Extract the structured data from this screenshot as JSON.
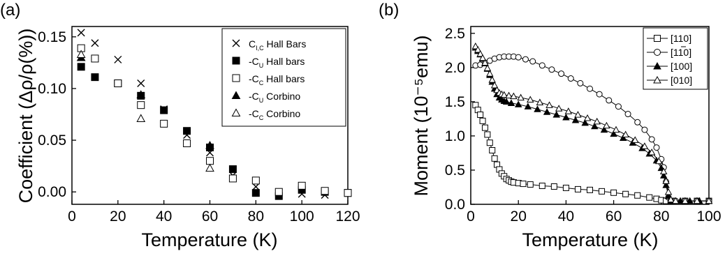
{
  "panels": [
    {
      "label": "(a)"
    },
    {
      "label": "(b)"
    }
  ],
  "chart_data": [
    {
      "type": "scatter",
      "panel": "(a)",
      "xlabel": "Temperature (K)",
      "ylabel": "Coefficient (Δρ/ρ(%))",
      "xlim": [
        0,
        120
      ],
      "ylim": [
        -0.012,
        0.16
      ],
      "xticks": [
        "0",
        "20",
        "40",
        "60",
        "80",
        "100",
        "120"
      ],
      "yticks": [
        "0.00",
        "0.05",
        "0.10",
        "0.15"
      ],
      "legend_position": "top-right",
      "series": [
        {
          "name": "C",
          "sub": "I,C",
          "suffix": " Hall Bars",
          "marker": "x",
          "points": [
            [
              4,
              0.154
            ],
            [
              10,
              0.144
            ],
            [
              20,
              0.128
            ],
            [
              30,
              0.105
            ],
            [
              40,
              0.08
            ],
            [
              50,
              0.055
            ],
            [
              60,
              0.038
            ],
            [
              70,
              0.016
            ],
            [
              80,
              0.005
            ],
            [
              90,
              -0.001
            ],
            [
              100,
              -0.002
            ],
            [
              110,
              -0.003
            ]
          ]
        },
        {
          "name": "-C",
          "sub": "U",
          "suffix": " Hall bars",
          "marker": "square-filled",
          "points": [
            [
              4,
              0.121
            ],
            [
              10,
              0.111
            ],
            [
              20,
              0.105
            ],
            [
              30,
              0.093
            ],
            [
              40,
              0.079
            ],
            [
              50,
              0.059
            ],
            [
              60,
              0.043
            ],
            [
              70,
              0.022
            ],
            [
              80,
              -0.001
            ],
            [
              90,
              -0.004
            ],
            [
              100,
              0.002
            ],
            [
              110,
              0.0
            ],
            [
              120,
              -0.001
            ]
          ]
        },
        {
          "name": "-C",
          "sub": "C",
          "suffix": " Hall bars",
          "marker": "square-open",
          "points": [
            [
              4,
              0.139
            ],
            [
              10,
              0.129
            ],
            [
              20,
              0.105
            ],
            [
              30,
              0.084
            ],
            [
              40,
              0.066
            ],
            [
              50,
              0.047
            ],
            [
              60,
              0.03
            ],
            [
              70,
              0.013
            ],
            [
              80,
              0.011
            ],
            [
              90,
              0.0
            ],
            [
              100,
              0.006
            ],
            [
              110,
              0.001
            ],
            [
              120,
              -0.001
            ]
          ]
        },
        {
          "name": "-C",
          "sub": "U",
          "suffix": " Corbino",
          "marker": "triangle-filled",
          "points": [
            [
              4,
              0.13
            ],
            [
              30,
              0.094
            ],
            [
              60,
              0.045
            ]
          ]
        },
        {
          "name": "-C",
          "sub": "C",
          "suffix": " Corbino",
          "marker": "triangle-open",
          "points": [
            [
              4,
              0.133
            ],
            [
              30,
              0.071
            ],
            [
              60,
              0.023
            ]
          ]
        }
      ]
    },
    {
      "type": "scatter",
      "panel": "(b)",
      "xlabel": "Temperature (K)",
      "ylabel": "Moment (10⁻⁵emu)",
      "xlim": [
        0,
        100
      ],
      "ylim": [
        0,
        2.6
      ],
      "xticks": [
        "0",
        "20",
        "40",
        "60",
        "80",
        "100"
      ],
      "yticks": [
        "0.0",
        "0.5",
        "1.0",
        "1.5",
        "2.0",
        "2.5"
      ],
      "legend_position": "top-right",
      "series": [
        {
          "name": "[110]",
          "bar": false,
          "marker": "square-open",
          "points": [
            [
              2,
              1.45
            ],
            [
              3,
              1.38
            ],
            [
              4,
              1.31
            ],
            [
              5,
              1.22
            ],
            [
              6,
              1.12
            ],
            [
              7,
              1.02
            ],
            [
              8,
              0.9
            ],
            [
              9,
              0.79
            ],
            [
              10,
              0.67
            ],
            [
              11,
              0.58
            ],
            [
              12,
              0.51
            ],
            [
              13,
              0.45
            ],
            [
              14,
              0.41
            ],
            [
              15,
              0.37
            ],
            [
              16,
              0.35
            ],
            [
              17,
              0.33
            ],
            [
              18,
              0.32
            ],
            [
              20,
              0.31
            ],
            [
              22,
              0.3
            ],
            [
              25,
              0.29
            ],
            [
              30,
              0.27
            ],
            [
              35,
              0.26
            ],
            [
              40,
              0.24
            ],
            [
              45,
              0.22
            ],
            [
              50,
              0.21
            ],
            [
              55,
              0.19
            ],
            [
              60,
              0.17
            ],
            [
              65,
              0.15
            ],
            [
              70,
              0.13
            ],
            [
              75,
              0.1
            ],
            [
              78,
              0.08
            ],
            [
              80,
              0.06
            ],
            [
              82,
              0.05
            ],
            [
              85,
              0.05
            ],
            [
              90,
              0.05
            ],
            [
              95,
              0.05
            ],
            [
              100,
              0.05
            ]
          ]
        },
        {
          "name": "[110]",
          "bar": true,
          "marker": "circle-open",
          "points": [
            [
              2,
              2.03
            ],
            [
              4,
              2.04
            ],
            [
              6,
              2.07
            ],
            [
              8,
              2.1
            ],
            [
              10,
              2.13
            ],
            [
              12,
              2.15
            ],
            [
              14,
              2.16
            ],
            [
              16,
              2.16
            ],
            [
              18,
              2.16
            ],
            [
              20,
              2.15
            ],
            [
              23,
              2.12
            ],
            [
              26,
              2.09
            ],
            [
              30,
              2.03
            ],
            [
              34,
              1.97
            ],
            [
              38,
              1.91
            ],
            [
              42,
              1.84
            ],
            [
              46,
              1.77
            ],
            [
              50,
              1.69
            ],
            [
              54,
              1.61
            ],
            [
              58,
              1.52
            ],
            [
              62,
              1.43
            ],
            [
              66,
              1.32
            ],
            [
              70,
              1.2
            ],
            [
              73,
              1.09
            ],
            [
              76,
              0.95
            ],
            [
              78,
              0.83
            ],
            [
              80,
              0.66
            ],
            [
              81,
              0.54
            ],
            [
              82,
              0.33
            ],
            [
              83,
              0.1
            ],
            [
              84,
              0.05
            ],
            [
              86,
              0.05
            ],
            [
              90,
              0.05
            ],
            [
              95,
              0.05
            ],
            [
              100,
              0.05
            ]
          ]
        },
        {
          "name": "[100]",
          "bar": false,
          "marker": "triangle-filled",
          "points": [
            [
              2,
              2.29
            ],
            [
              3,
              2.24
            ],
            [
              4,
              2.19
            ],
            [
              5,
              2.13
            ],
            [
              6,
              2.06
            ],
            [
              7,
              1.98
            ],
            [
              8,
              1.89
            ],
            [
              9,
              1.79
            ],
            [
              10,
              1.69
            ],
            [
              11,
              1.61
            ],
            [
              12,
              1.56
            ],
            [
              13,
              1.53
            ],
            [
              14,
              1.51
            ],
            [
              15,
              1.5
            ],
            [
              17,
              1.48
            ],
            [
              20,
              1.46
            ],
            [
              24,
              1.43
            ],
            [
              28,
              1.39
            ],
            [
              32,
              1.35
            ],
            [
              36,
              1.31
            ],
            [
              40,
              1.27
            ],
            [
              44,
              1.23
            ],
            [
              48,
              1.19
            ],
            [
              52,
              1.14
            ],
            [
              56,
              1.09
            ],
            [
              60,
              1.03
            ],
            [
              64,
              0.97
            ],
            [
              68,
              0.9
            ],
            [
              72,
              0.82
            ],
            [
              75,
              0.74
            ],
            [
              78,
              0.64
            ],
            [
              80,
              0.53
            ],
            [
              81,
              0.42
            ],
            [
              82,
              0.28
            ],
            [
              83,
              0.12
            ],
            [
              84,
              0.05
            ],
            [
              88,
              0.05
            ],
            [
              92,
              0.05
            ],
            [
              96,
              0.05
            ],
            [
              100,
              0.05
            ]
          ]
        },
        {
          "name": "[010]",
          "bar": false,
          "marker": "triangle-open",
          "points": [
            [
              2,
              2.31
            ],
            [
              3,
              2.26
            ],
            [
              4,
              2.2
            ],
            [
              5,
              2.14
            ],
            [
              6,
              2.07
            ],
            [
              7,
              1.99
            ],
            [
              8,
              1.91
            ],
            [
              9,
              1.82
            ],
            [
              10,
              1.74
            ],
            [
              11,
              1.67
            ],
            [
              12,
              1.63
            ],
            [
              13,
              1.61
            ],
            [
              14,
              1.6
            ],
            [
              16,
              1.59
            ],
            [
              18,
              1.58
            ],
            [
              21,
              1.56
            ],
            [
              25,
              1.53
            ],
            [
              29,
              1.49
            ],
            [
              33,
              1.45
            ],
            [
              37,
              1.4
            ],
            [
              41,
              1.36
            ],
            [
              45,
              1.31
            ],
            [
              49,
              1.26
            ],
            [
              53,
              1.21
            ],
            [
              57,
              1.15
            ],
            [
              61,
              1.09
            ],
            [
              65,
              1.02
            ],
            [
              69,
              0.94
            ],
            [
              73,
              0.85
            ],
            [
              76,
              0.76
            ],
            [
              79,
              0.63
            ],
            [
              81,
              0.48
            ],
            [
              82,
              0.34
            ],
            [
              83,
              0.18
            ],
            [
              84,
              0.07
            ],
            [
              86,
              0.05
            ],
            [
              90,
              0.05
            ],
            [
              95,
              0.05
            ],
            [
              100,
              0.05
            ]
          ]
        }
      ]
    }
  ]
}
